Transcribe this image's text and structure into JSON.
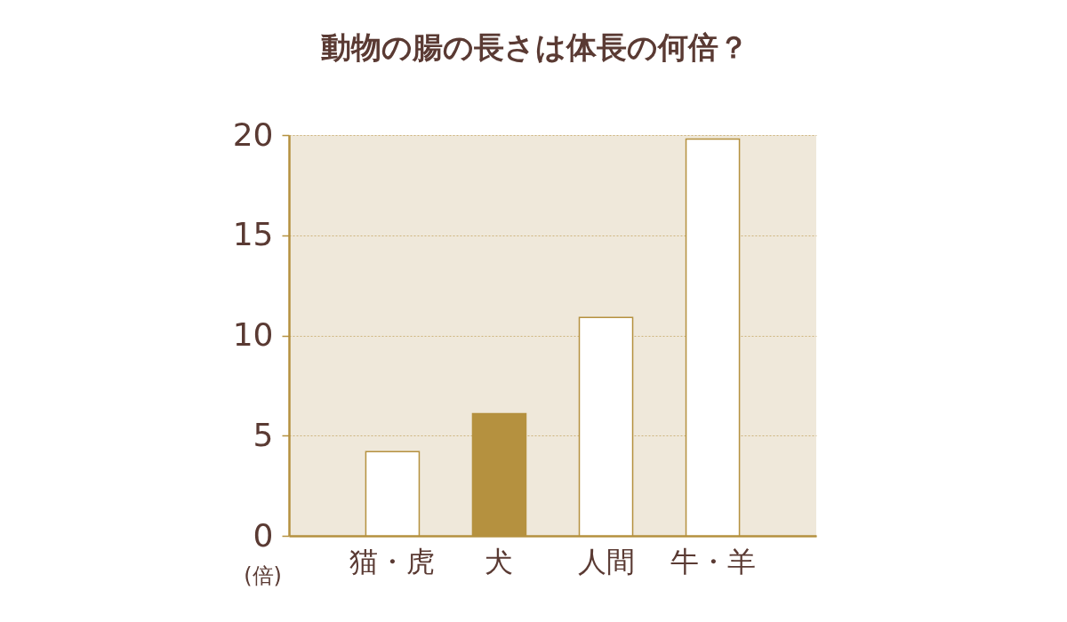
{
  "chart_data": {
    "type": "bar",
    "title": "動物の腸の長さは体長の何倍？",
    "ylabel": "(倍)",
    "categories": [
      "猫・虎",
      "犬",
      "人間",
      "牛・羊"
    ],
    "values": [
      4.2,
      6.1,
      10.9,
      19.8
    ],
    "colors": [
      "#ffffff",
      "#b5913f",
      "#ffffff",
      "#ffffff"
    ],
    "ylim": [
      0,
      20
    ],
    "yticks": [
      0,
      5,
      10,
      15,
      20
    ],
    "grid": "y"
  }
}
